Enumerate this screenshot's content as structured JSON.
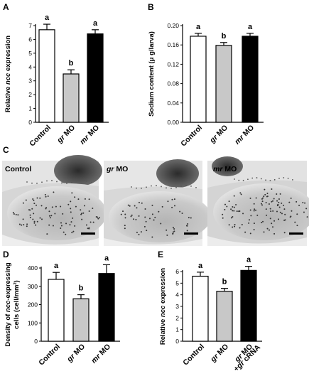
{
  "panel_labels": {
    "A": "A",
    "B": "B",
    "C": "C",
    "D": "D",
    "E": "E"
  },
  "colors": {
    "control": "#ffffff",
    "gr": "#c8c8c8",
    "mr": "#000000"
  },
  "micrographs": [
    {
      "label_plain": "",
      "label_italic": "",
      "label_tail": "Control"
    },
    {
      "label_plain": "",
      "label_italic": "gr",
      "label_tail": " MO"
    },
    {
      "label_plain": "",
      "label_italic": "mr",
      "label_tail": " MO"
    }
  ],
  "chart_data": [
    {
      "panel": "A",
      "type": "bar",
      "categories": [
        "Control",
        "gr MO",
        "mr MO"
      ],
      "values": [
        6.7,
        3.5,
        6.4
      ],
      "errors": [
        0.4,
        0.3,
        0.3
      ],
      "significance": [
        "a",
        "b",
        "a"
      ],
      "ylabel": "Relative ncc expression",
      "ylim": [
        0,
        7
      ],
      "yticks": [
        "0",
        "1",
        "2",
        "3",
        "4",
        "5",
        "6",
        "7"
      ]
    },
    {
      "panel": "B",
      "type": "bar",
      "categories": [
        "Control",
        "gr MO",
        "mr MO"
      ],
      "values": [
        0.178,
        0.159,
        0.178
      ],
      "errors": [
        0.006,
        0.006,
        0.006
      ],
      "significance": [
        "a",
        "b",
        "a"
      ],
      "ylabel": "Sodium content (μ g/larva)",
      "ylim": [
        0,
        0.2
      ],
      "yticks": [
        "0.00",
        "0.04",
        "0.08",
        "0.12",
        "0.16",
        "0.20"
      ]
    },
    {
      "panel": "D",
      "type": "bar",
      "categories": [
        "Control",
        "gr MO",
        "mr MO"
      ],
      "values": [
        338,
        232,
        370
      ],
      "errors": [
        38,
        22,
        48
      ],
      "significance": [
        "a",
        "b",
        "a"
      ],
      "ylabel_line1": "Density of ncc-expressing",
      "ylabel_line2": "cells (cell/mm²)",
      "ylim": [
        0,
        400
      ],
      "yticks": [
        "0",
        "100",
        "200",
        "300",
        "400"
      ]
    },
    {
      "panel": "E",
      "type": "bar",
      "categories": [
        "Control",
        "gr MO",
        "gr MO +gr cRNA"
      ],
      "values": [
        5.6,
        4.3,
        6.1
      ],
      "errors": [
        0.35,
        0.25,
        0.35
      ],
      "significance": [
        "a",
        "b",
        "a"
      ],
      "ylabel": "Relative ncc expression",
      "ylim": [
        0,
        6
      ],
      "yticks": [
        "0",
        "1",
        "2",
        "3",
        "4",
        "5",
        "6"
      ]
    }
  ]
}
